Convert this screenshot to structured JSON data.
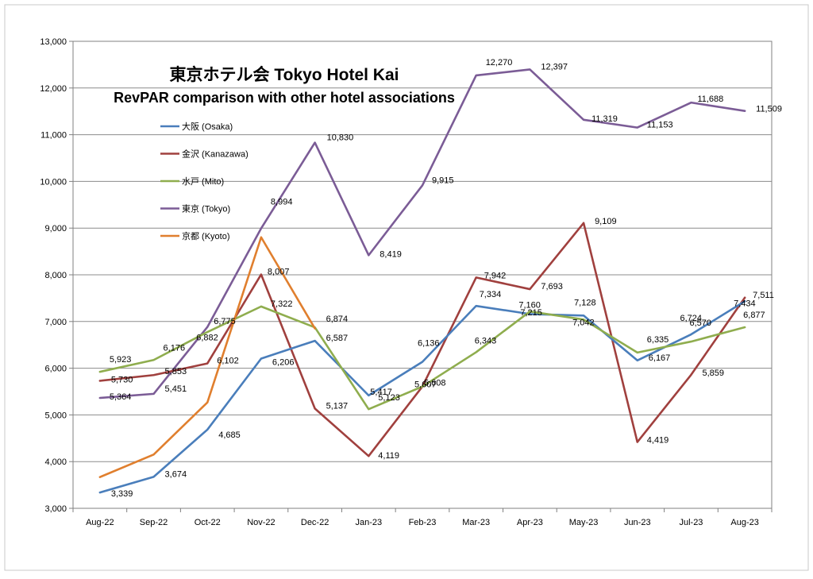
{
  "chart_data": {
    "type": "line",
    "title": "東京ホテル会  Tokyo Hotel Kai",
    "subtitle": "RevPAR comparison with other hotel associations",
    "xlabel": "",
    "ylabel": "",
    "ylim": [
      3000,
      13000
    ],
    "yticks": [
      3000,
      4000,
      5000,
      6000,
      7000,
      8000,
      9000,
      10000,
      11000,
      12000,
      13000
    ],
    "ytick_labels": [
      "3,000",
      "4,000",
      "5,000",
      "6,000",
      "7,000",
      "8,000",
      "9,000",
      "10,000",
      "11,000",
      "12,000",
      "13,000"
    ],
    "grid": true,
    "legend_position": "upper-left inside plot",
    "categories": [
      "Aug-22",
      "Sep-22",
      "Oct-22",
      "Nov-22",
      "Dec-22",
      "Jan-23",
      "Feb-23",
      "Mar-23",
      "Apr-23",
      "May-23",
      "Jun-23",
      "Jul-23",
      "Aug-23"
    ],
    "series": [
      {
        "name": "大阪 (Osaka)",
        "color": "#4a7ebb",
        "values": [
          3339,
          3674,
          4685,
          6206,
          6587,
          5417,
          6136,
          7334,
          7160,
          7128,
          6167,
          6724,
          7434
        ],
        "labels": [
          "3,339",
          "3,674",
          "4,685",
          "6,206",
          "6,587",
          "5,417",
          "6,136",
          "7,334",
          "7,160",
          "7,128",
          "6,167",
          "6,724",
          "7,434"
        ]
      },
      {
        "name": "金沢 (Kanazawa)",
        "color": "#a0403e",
        "values": [
          5730,
          5853,
          6102,
          8007,
          5137,
          4119,
          5608,
          7942,
          7693,
          9109,
          4419,
          5859,
          7511
        ],
        "labels": [
          "5,730",
          "5,853",
          "6,102",
          "8,007",
          "5,137",
          "4,119",
          "5,608",
          "7,942",
          "7,693",
          "9,109",
          "4,419",
          "5,859",
          "7,511"
        ]
      },
      {
        "name": "水戸 (Mito)",
        "color": "#8fad4e",
        "values": [
          5923,
          6176,
          6775,
          7322,
          6874,
          5123,
          5607,
          6343,
          7215,
          7042,
          6335,
          6570,
          6877
        ],
        "labels": [
          "5,923",
          "6,176",
          "6,775",
          "7,322",
          "6,874",
          "5,123",
          "5,607",
          "6,343",
          "7,215",
          "7,042",
          "6,335",
          "6,570",
          "6,877"
        ]
      },
      {
        "name": "東京 (Tokyo)",
        "color": "#7b5c96",
        "values": [
          5364,
          5451,
          6882,
          8994,
          10830,
          8419,
          9915,
          12270,
          12397,
          11319,
          11153,
          11688,
          11509
        ],
        "labels": [
          "5,364",
          "5,451",
          "6,882",
          "8,994",
          "10,830",
          "8,419",
          "9,915",
          "12,270",
          "12,397",
          "11,319",
          "11,153",
          "11,688",
          "11,509"
        ]
      },
      {
        "name": "京都 (Kyoto)",
        "color": "#e07f2e",
        "values": [
          3669,
          4151,
          5267,
          8804,
          6851,
          null,
          null,
          null,
          null,
          null,
          null,
          null,
          null
        ],
        "labels": []
      }
    ]
  }
}
